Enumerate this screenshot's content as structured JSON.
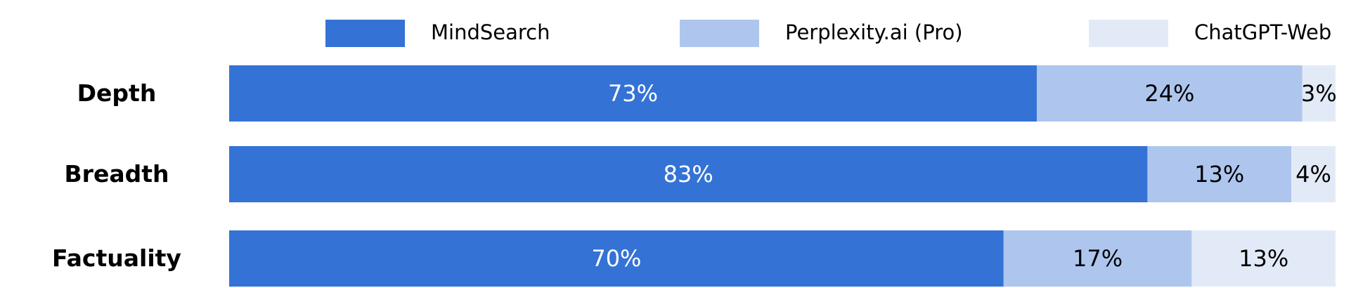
{
  "chart_data": {
    "type": "bar",
    "orientation": "horizontal",
    "stacked": true,
    "normalized": true,
    "title": "",
    "xlabel": "",
    "ylabel": "",
    "xlim": [
      0,
      100
    ],
    "grid": false,
    "legend_position": "top",
    "categories": [
      "Depth",
      "Breadth",
      "Factuality"
    ],
    "series": [
      {
        "name": "MindSearch",
        "color": "#3473d5",
        "label_color": "#ffffff",
        "values": [
          73,
          83,
          70
        ],
        "labels": [
          "73%",
          "83%",
          "70%"
        ]
      },
      {
        "name": "Perplexity.ai (Pro)",
        "color": "#aec6ee",
        "label_color": "#000000",
        "values": [
          24,
          13,
          17
        ],
        "labels": [
          "24%",
          "13%",
          "17%"
        ]
      },
      {
        "name": "ChatGPT-Web",
        "color": "#e3eaf7",
        "label_color": "#000000",
        "values": [
          3,
          4,
          13
        ],
        "labels": [
          "3%",
          "4%",
          "13%"
        ]
      }
    ]
  }
}
